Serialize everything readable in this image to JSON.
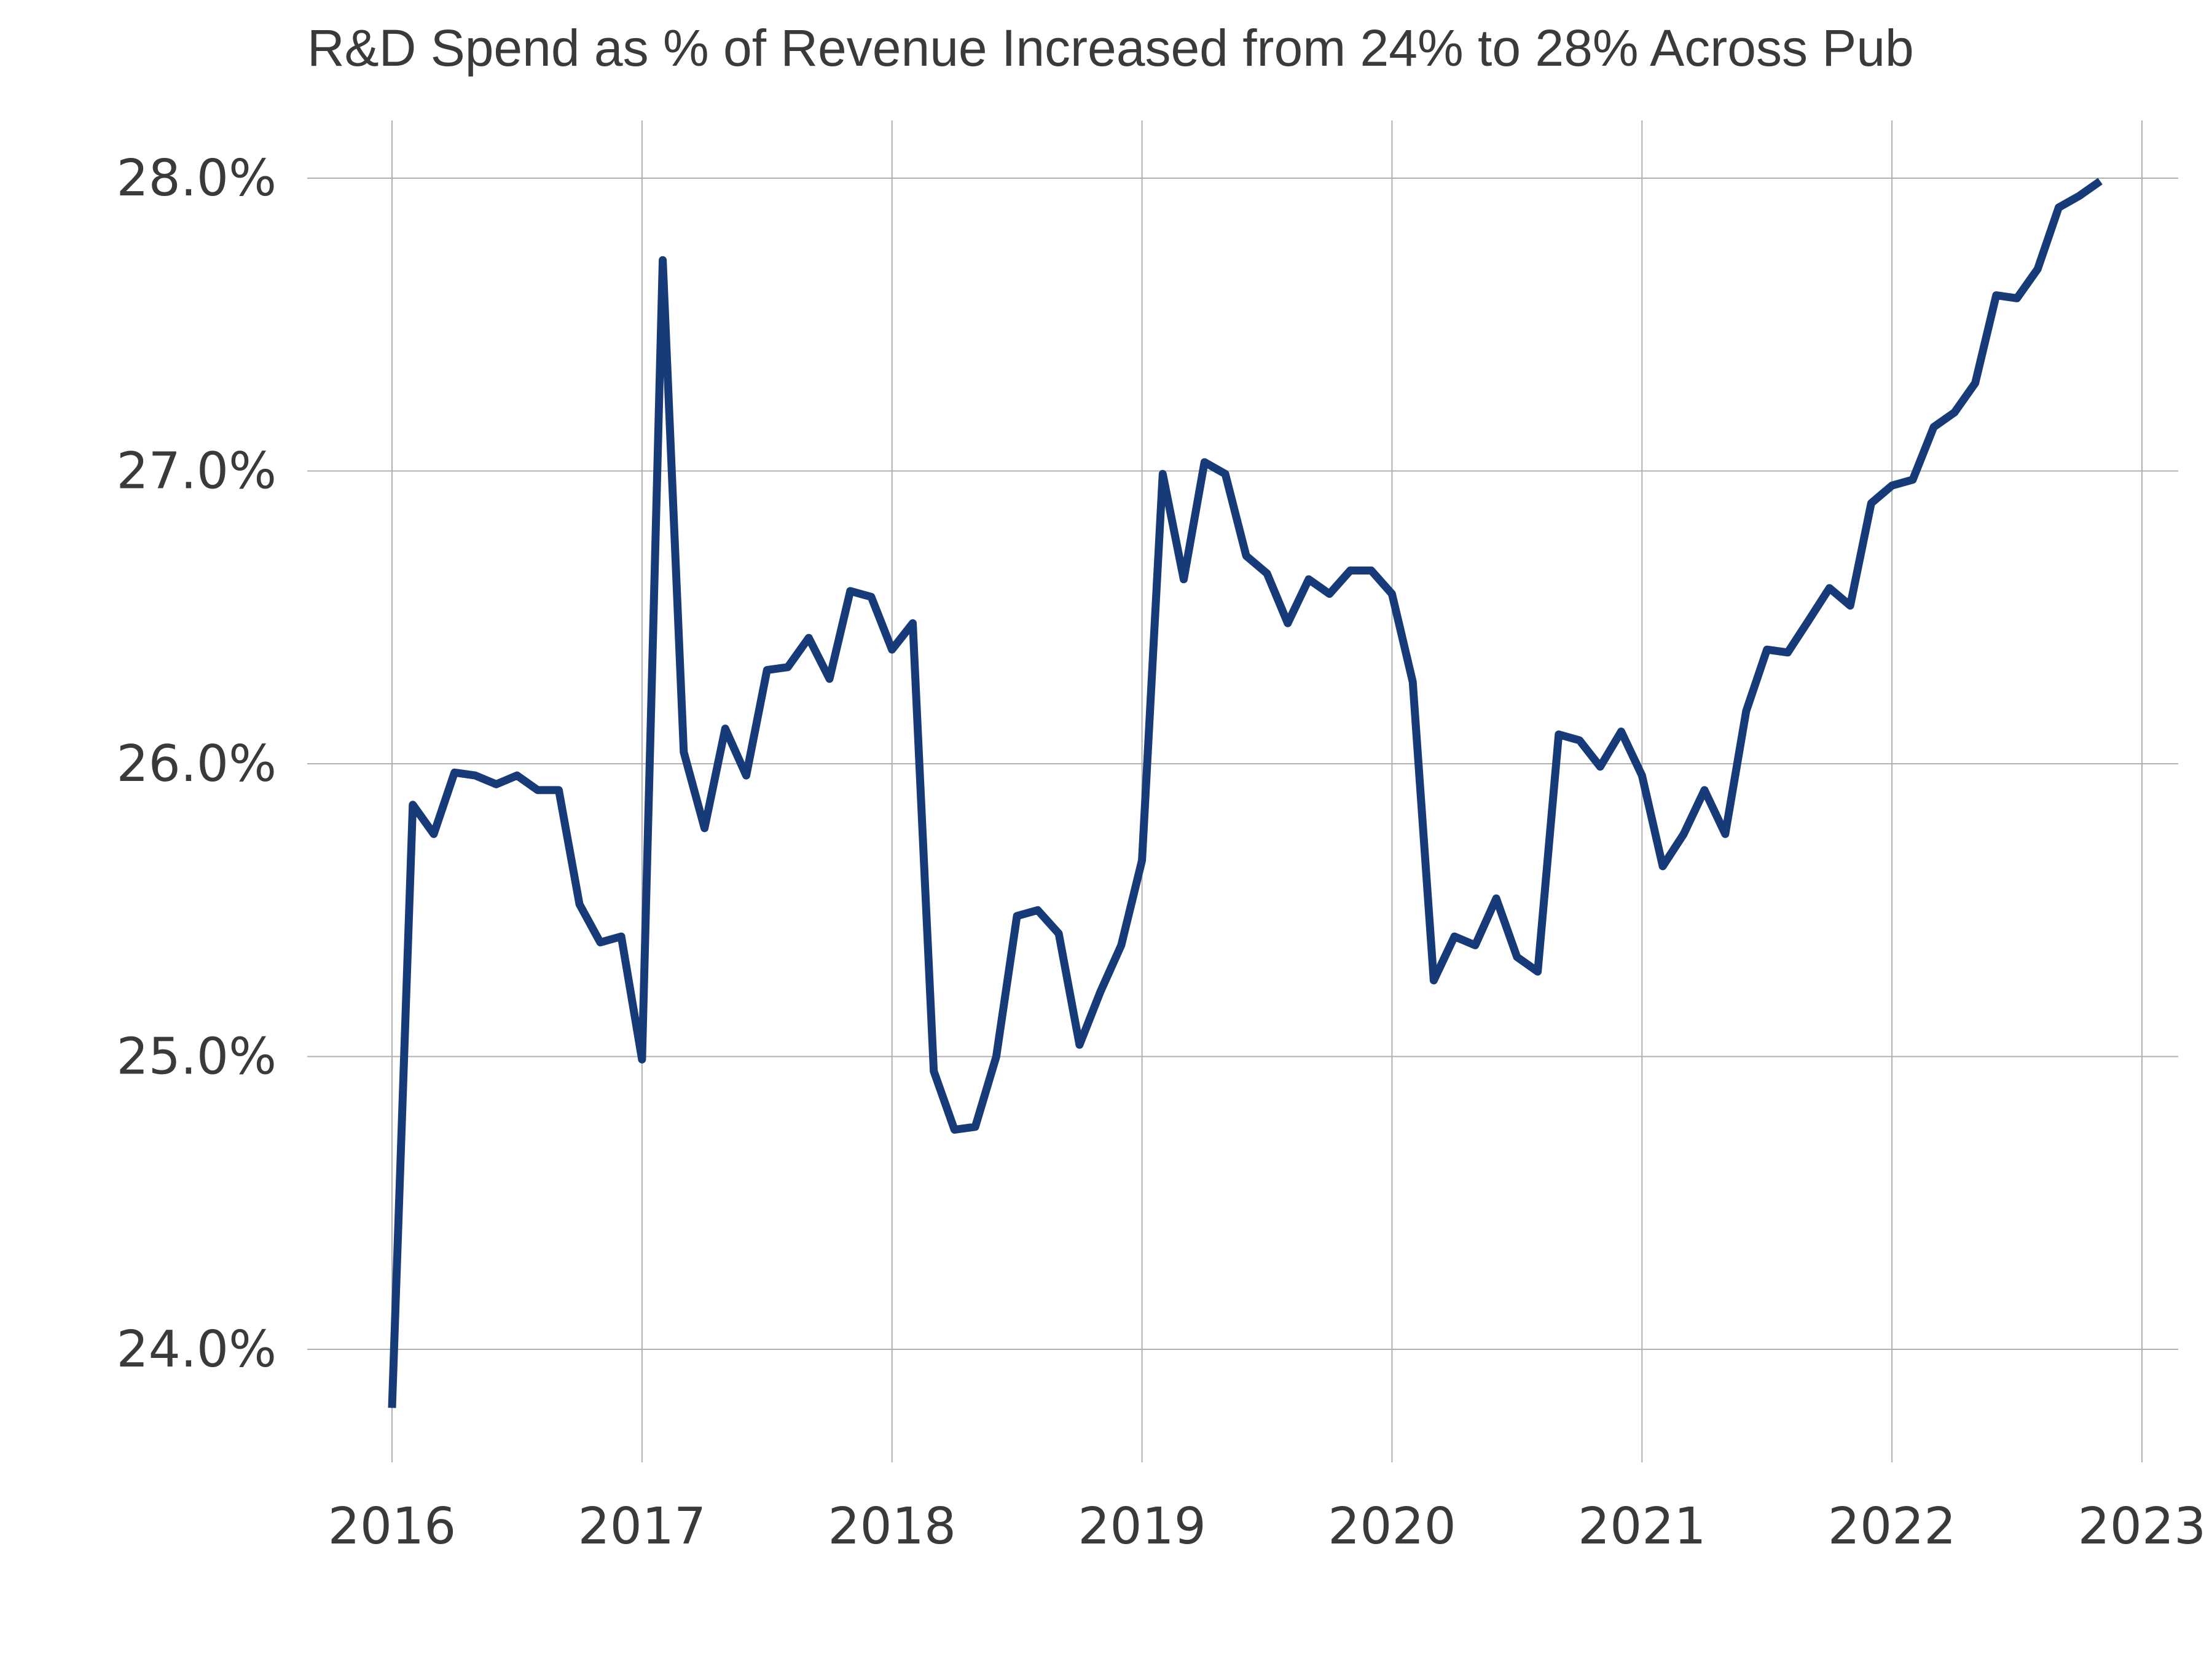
{
  "chart_data": {
    "type": "line",
    "title": "R&D Spend as % of Revenue Increased from 24% to 28% Across Pub",
    "xlabel": "",
    "ylabel": "",
    "x_ticks": [
      "2016",
      "2017",
      "2018",
      "2019",
      "2020",
      "2021",
      "2022",
      "2023"
    ],
    "y_ticks": [
      "28.0%",
      "27.0%",
      "26.0%",
      "25.0%",
      "24.0%"
    ],
    "y_tick_values": [
      28.0,
      27.0,
      26.0,
      25.0,
      24.0
    ],
    "xlim": [
      2016.0,
      2023.0
    ],
    "ylim": [
      23.6,
      28.2
    ],
    "grid": true,
    "legend": "none",
    "color": "#173a78",
    "series": [
      {
        "x": [
          2016.0,
          2016.083,
          2016.167,
          2016.25,
          2016.333,
          2016.417,
          2016.5,
          2016.583,
          2016.667,
          2016.75,
          2016.833,
          2016.917,
          2017.0,
          2017.083,
          2017.167,
          2017.25,
          2017.333,
          2017.417,
          2017.5,
          2017.583,
          2017.667,
          2017.75,
          2017.833,
          2017.917,
          2018.0,
          2018.083,
          2018.167,
          2018.25,
          2018.333,
          2018.417,
          2018.5,
          2018.583,
          2018.667,
          2018.75,
          2018.833,
          2018.917,
          2019.0,
          2019.083,
          2019.167,
          2019.25,
          2019.333,
          2019.417,
          2019.5,
          2019.583,
          2019.667,
          2019.75,
          2019.833,
          2019.917,
          2020.0,
          2020.083,
          2020.167,
          2020.25,
          2020.333,
          2020.417,
          2020.5,
          2020.583,
          2020.667,
          2020.75,
          2020.833,
          2020.917,
          2021.0,
          2021.083,
          2021.167,
          2021.25,
          2021.333,
          2021.417,
          2021.5,
          2021.583,
          2021.667,
          2021.75,
          2021.833,
          2021.917,
          2022.0,
          2022.083,
          2022.167,
          2022.25,
          2022.333,
          2022.417,
          2022.5,
          2022.583,
          2022.667,
          2022.75,
          2022.833
        ],
        "values": [
          23.8,
          25.86,
          25.76,
          25.97,
          25.96,
          25.93,
          25.96,
          25.91,
          25.91,
          25.52,
          25.39,
          25.41,
          24.99,
          27.72,
          26.04,
          25.78,
          26.12,
          25.96,
          26.32,
          26.33,
          26.43,
          26.29,
          26.59,
          26.57,
          26.39,
          26.48,
          24.95,
          24.75,
          24.76,
          25.0,
          25.48,
          25.5,
          25.42,
          25.04,
          25.22,
          25.38,
          25.67,
          26.99,
          26.63,
          27.03,
          26.99,
          26.71,
          26.65,
          26.48,
          26.63,
          26.58,
          26.66,
          26.66,
          26.58,
          26.28,
          25.26,
          25.41,
          25.38,
          25.54,
          25.34,
          25.29,
          26.1,
          26.08,
          25.99,
          26.11,
          25.96,
          25.65,
          25.76,
          25.91,
          25.76,
          26.18,
          26.39,
          26.38,
          26.49,
          26.6,
          26.54,
          26.89,
          26.95,
          26.97,
          27.15,
          27.2,
          27.3,
          27.6,
          27.59,
          27.69,
          27.9,
          27.94,
          27.99
        ]
      }
    ]
  }
}
